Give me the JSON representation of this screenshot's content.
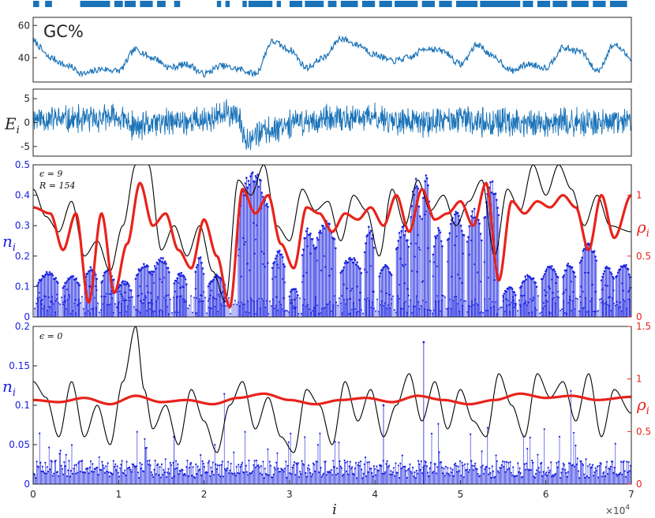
{
  "chart_data": [
    {
      "type": "heatmap",
      "panel": "coding-track",
      "x_range": [
        0,
        70000
      ],
      "segments": [
        [
          0,
          700
        ],
        [
          1400,
          2200
        ],
        [
          5500,
          9000
        ],
        [
          9500,
          10500
        ],
        [
          10700,
          12000
        ],
        [
          12500,
          14000
        ],
        [
          14500,
          15500
        ],
        [
          16500,
          17200
        ],
        [
          21500,
          22000
        ],
        [
          22500,
          23000
        ],
        [
          24500,
          25000
        ],
        [
          25200,
          28000
        ],
        [
          28500,
          29000
        ],
        [
          30000,
          31500
        ],
        [
          31800,
          34000
        ],
        [
          34500,
          35500
        ],
        [
          36000,
          38000
        ],
        [
          38500,
          40000
        ],
        [
          40500,
          42000
        ],
        [
          42300,
          45000
        ],
        [
          45500,
          47000
        ],
        [
          47500,
          49000
        ],
        [
          49500,
          52000
        ],
        [
          52300,
          57000
        ],
        [
          57300,
          58500
        ],
        [
          59000,
          60500
        ],
        [
          60800,
          62500
        ],
        [
          63000,
          65000
        ],
        [
          65500,
          67000
        ],
        [
          67500,
          69500
        ]
      ],
      "color": "#1a73b8"
    },
    {
      "type": "line",
      "panel": "gc",
      "label": "GC%",
      "x_range": [
        0,
        70000
      ],
      "ylim": [
        25,
        65
      ],
      "yticks": [
        "40",
        "60"
      ],
      "ytick_values": [
        40,
        60
      ],
      "series": [
        {
          "color": "#1a73b8",
          "x": [
            0,
            2000,
            4000,
            6000,
            8000,
            10000,
            12000,
            14000,
            16000,
            18000,
            20000,
            22000,
            24000,
            26000,
            28000,
            30000,
            32000,
            34000,
            36000,
            38000,
            40000,
            42000,
            44000,
            46000,
            48000,
            50000,
            52000,
            54000,
            56000,
            58000,
            60000,
            62000,
            64000,
            66000,
            68000,
            70000
          ],
          "values": [
            50,
            40,
            35,
            30,
            33,
            32,
            45,
            40,
            34,
            36,
            30,
            35,
            33,
            30,
            50,
            45,
            34,
            40,
            52,
            48,
            42,
            38,
            40,
            46,
            44,
            36,
            48,
            40,
            32,
            36,
            34,
            46,
            44,
            32,
            48,
            40
          ]
        }
      ]
    },
    {
      "type": "line",
      "panel": "energy",
      "ylabel": "E_i",
      "x_range": [
        0,
        70000
      ],
      "ylim": [
        -7,
        7
      ],
      "yticks": [
        "-5",
        "0",
        "5"
      ],
      "ytick_values": [
        -5,
        0,
        5
      ],
      "series": [
        {
          "color": "#1a73b8",
          "x": [
            0,
            5000,
            10000,
            12000,
            15000,
            20000,
            23500,
            25000,
            27000,
            30000,
            35000,
            40000,
            45000,
            50000,
            55000,
            60000,
            65000,
            70000
          ],
          "center": [
            1,
            0.5,
            1,
            -1,
            0,
            0.5,
            2,
            -3,
            -2,
            0,
            0.5,
            1,
            0,
            0.5,
            0,
            0,
            0,
            0
          ],
          "amplitude": 3.5
        }
      ]
    },
    {
      "type": "line",
      "panel": "eps9",
      "annotation_line1": "ϵ = 9",
      "annotation_line2": "R = 154",
      "ylabel_left": "n_i",
      "ylabel_right": "ρ_i",
      "x_range": [
        0,
        70000
      ],
      "ylim_left": [
        0,
        0.5
      ],
      "ylim_right": [
        0,
        1.25
      ],
      "yticks_left": [
        "0",
        "0.1",
        "0.2",
        "0.3",
        "0.4",
        "0.5"
      ],
      "ytick_values_left": [
        0,
        0.1,
        0.2,
        0.3,
        0.4,
        0.5
      ],
      "yticks_right": [
        "0",
        "0.5",
        "1"
      ],
      "ytick_values_right": [
        0,
        0.5,
        1
      ],
      "red_rho": {
        "color": "#e8231b",
        "x": [
          0,
          2000,
          3500,
          5000,
          6500,
          8000,
          9500,
          11000,
          12500,
          14000,
          15500,
          17000,
          18500,
          20000,
          21500,
          23000,
          24500,
          26000,
          27500,
          29000,
          30500,
          32000,
          33500,
          35000,
          36500,
          38000,
          39500,
          41000,
          42500,
          44000,
          45500,
          47000,
          48500,
          50000,
          51500,
          53000,
          54500,
          56000,
          57500,
          59000,
          60500,
          62000,
          63500,
          65000,
          66500,
          68000,
          70000
        ],
        "values": [
          0.9,
          0.85,
          0.55,
          0.85,
          0.12,
          0.85,
          0.2,
          0.6,
          1.1,
          0.75,
          0.85,
          0.55,
          0.4,
          0.8,
          0.5,
          0.08,
          1.05,
          0.85,
          1.0,
          0.6,
          0.4,
          0.9,
          0.85,
          0.7,
          0.85,
          0.8,
          0.9,
          0.75,
          1.0,
          0.7,
          1.05,
          0.8,
          0.85,
          0.95,
          0.75,
          1.1,
          0.3,
          0.95,
          0.85,
          0.95,
          0.9,
          1.0,
          0.9,
          0.55,
          1.0,
          0.65,
          1.0
        ]
      },
      "black_curve": {
        "color": "#000000",
        "x": [
          0,
          1500,
          3000,
          4500,
          6000,
          7500,
          9000,
          10500,
          12000,
          13500,
          15000,
          16500,
          18000,
          19500,
          21000,
          22500,
          24000,
          25500,
          27000,
          28500,
          30000,
          31500,
          33000,
          34500,
          36000,
          37500,
          39000,
          40500,
          42000,
          43500,
          45000,
          46500,
          48000,
          49500,
          51000,
          52500,
          54000,
          55500,
          57000,
          58500,
          60000,
          61500,
          63000,
          64500,
          66000,
          67500,
          70000
        ],
        "values": [
          0.42,
          0.33,
          0.28,
          0.38,
          0.2,
          0.25,
          0.15,
          0.3,
          0.5,
          0.5,
          0.22,
          0.3,
          0.2,
          0.3,
          0.15,
          0.05,
          0.45,
          0.4,
          0.5,
          0.3,
          0.25,
          0.42,
          0.35,
          0.38,
          0.25,
          0.4,
          0.35,
          0.2,
          0.42,
          0.3,
          0.45,
          0.35,
          0.4,
          0.3,
          0.38,
          0.45,
          0.2,
          0.42,
          0.35,
          0.5,
          0.4,
          0.5,
          0.42,
          0.3,
          0.4,
          0.3,
          0.28
        ]
      },
      "stems": {
        "color": "#1a22e0",
        "plateaus": [
          [
            500,
            3000,
            0.15
          ],
          [
            3500,
            5500,
            0.14
          ],
          [
            6000,
            7500,
            0.17
          ],
          [
            8000,
            9500,
            0.16
          ],
          [
            9800,
            11500,
            0.12
          ],
          [
            12000,
            14000,
            0.18
          ],
          [
            14000,
            16000,
            0.2
          ],
          [
            16500,
            18000,
            0.15
          ],
          [
            19000,
            20000,
            0.2
          ],
          [
            20500,
            22500,
            0.14
          ],
          [
            24000,
            27500,
            0.49
          ],
          [
            28000,
            29500,
            0.22
          ],
          [
            30000,
            31000,
            0.1
          ],
          [
            31500,
            33000,
            0.3
          ],
          [
            33000,
            35500,
            0.32
          ],
          [
            36000,
            38500,
            0.2
          ],
          [
            38800,
            40000,
            0.3
          ],
          [
            40500,
            42000,
            0.18
          ],
          [
            42500,
            44000,
            0.3
          ],
          [
            44200,
            45300,
            0.46
          ],
          [
            45500,
            46500,
            0.47
          ],
          [
            46800,
            48000,
            0.3
          ],
          [
            48500,
            50500,
            0.35
          ],
          [
            50800,
            52500,
            0.36
          ],
          [
            52800,
            54500,
            0.45
          ],
          [
            55000,
            56500,
            0.1
          ],
          [
            57000,
            59000,
            0.14
          ],
          [
            59500,
            61500,
            0.17
          ],
          [
            62000,
            63500,
            0.18
          ],
          [
            64000,
            66000,
            0.25
          ],
          [
            66500,
            68000,
            0.17
          ],
          [
            68200,
            70000,
            0.18
          ]
        ]
      }
    },
    {
      "type": "line",
      "panel": "eps0",
      "annotation": "ϵ = 0",
      "ylabel_left": "n_i",
      "ylabel_right": "ρ_i",
      "xlabel": "i",
      "x_range": [
        0,
        70000
      ],
      "ylim_left": [
        0,
        0.2
      ],
      "ylim_right": [
        0,
        1.5
      ],
      "yticks_left": [
        "0",
        "0.05",
        "0.1",
        "0.15",
        "0.2"
      ],
      "ytick_values_left": [
        0,
        0.05,
        0.1,
        0.15,
        0.2
      ],
      "yticks_right": [
        "0",
        "0.5",
        "1",
        "1.5"
      ],
      "ytick_values_right": [
        0,
        0.5,
        1,
        1.5
      ],
      "xticks": [
        "0",
        "1",
        "2",
        "3",
        "4",
        "5",
        "6",
        "7"
      ],
      "xtick_values": [
        0,
        10000,
        20000,
        30000,
        40000,
        50000,
        60000,
        70000
      ],
      "x_multiplier": "×10",
      "x_multiplier_exp": "4",
      "red_rho": {
        "color": "#e8231b",
        "x": [
          0,
          3000,
          6000,
          9000,
          12000,
          15000,
          18000,
          21000,
          24000,
          27000,
          30000,
          33000,
          36000,
          39000,
          42000,
          45000,
          48000,
          51000,
          54000,
          57000,
          60000,
          63000,
          66000,
          70000
        ],
        "values": [
          0.8,
          0.78,
          0.82,
          0.76,
          0.84,
          0.78,
          0.8,
          0.76,
          0.82,
          0.86,
          0.8,
          0.76,
          0.8,
          0.82,
          0.78,
          0.84,
          0.8,
          0.76,
          0.8,
          0.86,
          0.82,
          0.84,
          0.8,
          0.83
        ]
      },
      "black_curve": {
        "color": "#000000",
        "x": [
          0,
          1500,
          3000,
          4500,
          6000,
          7500,
          9000,
          10500,
          12000,
          13000,
          14000,
          15500,
          17000,
          18500,
          20000,
          21500,
          23000,
          24500,
          26000,
          27500,
          29000,
          30500,
          32000,
          33500,
          35000,
          36500,
          38000,
          39500,
          41000,
          42500,
          44000,
          45500,
          47000,
          48500,
          50000,
          51500,
          53000,
          54500,
          56000,
          57500,
          59000,
          60500,
          62000,
          63500,
          65000,
          66500,
          68000,
          70000
        ],
        "values": [
          0.13,
          0.11,
          0.06,
          0.13,
          0.06,
          0.1,
          0.05,
          0.13,
          0.2,
          0.12,
          0.07,
          0.1,
          0.05,
          0.12,
          0.08,
          0.04,
          0.1,
          0.13,
          0.07,
          0.11,
          0.06,
          0.04,
          0.12,
          0.1,
          0.05,
          0.13,
          0.08,
          0.12,
          0.06,
          0.1,
          0.14,
          0.08,
          0.13,
          0.07,
          0.12,
          0.08,
          0.06,
          0.14,
          0.1,
          0.06,
          0.14,
          0.11,
          0.13,
          0.08,
          0.14,
          0.06,
          0.12,
          0.09
        ]
      },
      "stems": {
        "color": "#1a22e0",
        "max_height": 0.18,
        "base_height": 0.025
      }
    }
  ]
}
